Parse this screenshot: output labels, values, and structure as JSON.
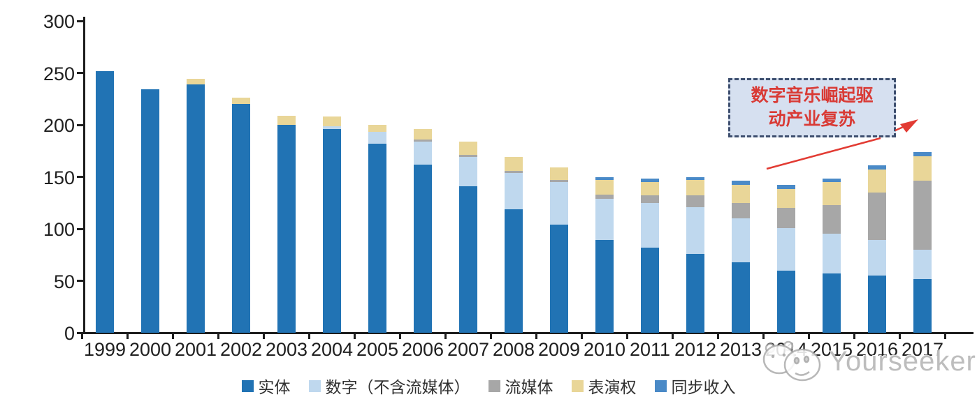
{
  "chart_data": {
    "type": "bar",
    "stacked": true,
    "title": "",
    "xlabel": "",
    "ylabel": "",
    "ylim": [
      0,
      300
    ],
    "y_ticks": [
      0,
      50,
      100,
      150,
      200,
      250,
      300
    ],
    "grid": false,
    "legend_position": "bottom",
    "categories": [
      "1999",
      "2000",
      "2001",
      "2002",
      "2003",
      "2004",
      "2005",
      "2006",
      "2007",
      "2008",
      "2009",
      "2010",
      "2011",
      "2012",
      "2013",
      "2014",
      "2015",
      "2016",
      "2017"
    ],
    "series": [
      {
        "name": "实体",
        "color": "#2173B4",
        "values": [
          252,
          234,
          239,
          220,
          200,
          196,
          182,
          162,
          141,
          119,
          104,
          89,
          82,
          76,
          68,
          60,
          57,
          55,
          52
        ]
      },
      {
        "name": "数字（不含流媒体）",
        "color": "#BFD8EE",
        "values": [
          0,
          0,
          0,
          0,
          0,
          3,
          11,
          22,
          28,
          35,
          41,
          40,
          43,
          45,
          42,
          41,
          38,
          34,
          28
        ]
      },
      {
        "name": "流媒体",
        "color": "#A7A7A7",
        "values": [
          0,
          0,
          0,
          0,
          0,
          0,
          0,
          2,
          2,
          2,
          2,
          4,
          7,
          11,
          15,
          19,
          28,
          46,
          66
        ]
      },
      {
        "name": "表演权",
        "color": "#E9D698",
        "values": [
          0,
          0,
          5,
          6,
          9,
          9,
          7,
          10,
          13,
          13,
          12,
          14,
          13,
          15,
          17,
          18,
          22,
          22,
          24
        ]
      },
      {
        "name": "同步收入",
        "color": "#4A8AC7",
        "values": [
          0,
          0,
          0,
          0,
          0,
          0,
          0,
          0,
          0,
          0,
          0,
          3,
          3,
          3,
          4,
          4,
          3,
          4,
          4
        ]
      }
    ]
  },
  "annotation": {
    "lines": [
      "数字音乐崛起驱",
      "动产业复苏"
    ],
    "text_color": "#D93A35",
    "box_fill": "#D6E0F0",
    "border_color": "#3D4E6E",
    "arrow_color": "#E23B33"
  },
  "watermark": {
    "text": "Yourseeker"
  }
}
